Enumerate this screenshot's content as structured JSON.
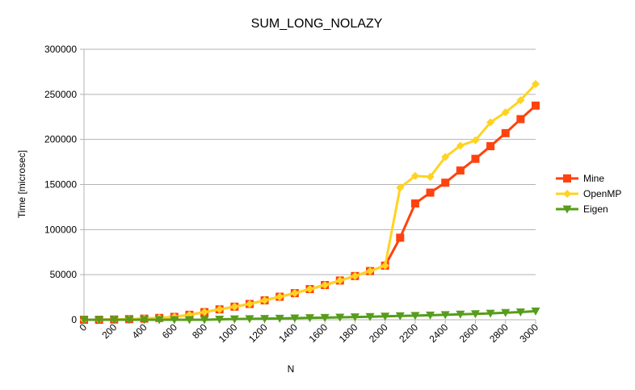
{
  "chart_data": {
    "type": "line",
    "title": "SUM_LONG_NOLAZY",
    "xlabel": "N",
    "ylabel": "Time [microsec]",
    "xlim": [
      0,
      3000
    ],
    "ylim": [
      0,
      300000
    ],
    "xticks": [
      "0",
      "200",
      "400",
      "600",
      "800",
      "1000",
      "1200",
      "1400",
      "1600",
      "1800",
      "2000",
      "2200",
      "2400",
      "2600",
      "2800",
      "3000"
    ],
    "yticks": [
      "0",
      "50000",
      "100000",
      "150000",
      "200000",
      "250000",
      "300000"
    ],
    "grid": "horizontal",
    "legend": "right",
    "x": [
      0,
      100,
      200,
      300,
      400,
      500,
      600,
      700,
      800,
      900,
      1000,
      1100,
      1200,
      1300,
      1400,
      1500,
      1600,
      1700,
      1800,
      1900,
      2000,
      2100,
      2200,
      2300,
      2400,
      2500,
      2600,
      2700,
      2800,
      2900,
      3000
    ],
    "series": [
      {
        "name": "Mine",
        "color": "#ff420e",
        "marker": "square",
        "values": [
          0,
          0,
          300,
          700,
          1200,
          2000,
          3200,
          5500,
          8500,
          11500,
          14500,
          17500,
          21500,
          25500,
          29500,
          34000,
          38500,
          43500,
          48500,
          54000,
          60000,
          91000,
          129000,
          141000,
          152000,
          165500,
          178500,
          192500,
          207000,
          222500,
          237500
        ]
      },
      {
        "name": "OpenMP",
        "color": "#ffd320",
        "marker": "diamond",
        "values": [
          0,
          0,
          300,
          700,
          1200,
          2000,
          3200,
          5500,
          8500,
          11500,
          14500,
          17500,
          21500,
          25500,
          29500,
          34000,
          38500,
          43500,
          48500,
          54000,
          60000,
          146500,
          159500,
          158500,
          180500,
          193000,
          199000,
          219000,
          230000,
          243500,
          261500
        ]
      },
      {
        "name": "Eigen",
        "color": "#579d1c",
        "marker": "triangle-down",
        "values": [
          0,
          0,
          0,
          0,
          0,
          0,
          0,
          0,
          0,
          500,
          800,
          1000,
          1200,
          1500,
          1800,
          2100,
          2400,
          2700,
          3000,
          3400,
          3800,
          4200,
          4600,
          5000,
          5500,
          6000,
          6500,
          7000,
          7800,
          8500,
          9500
        ]
      }
    ]
  }
}
